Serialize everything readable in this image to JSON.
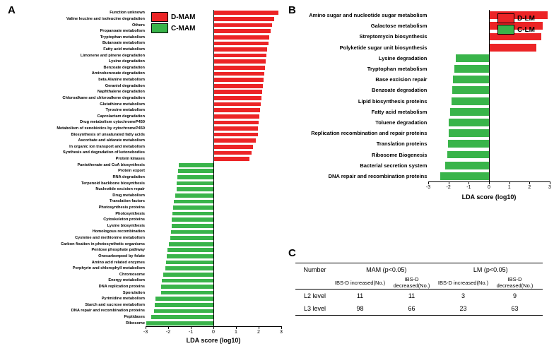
{
  "colors": {
    "red": "#ec2426",
    "green": "#39b44a",
    "axis": "#000000",
    "text": "#000000",
    "bg": "#ffffff"
  },
  "panelA": {
    "label": "A",
    "axis_title": "LDA score (log10)",
    "xlim": [
      -3,
      3
    ],
    "xticks": [
      -3,
      -2,
      -1,
      0,
      1,
      2,
      3
    ],
    "legend": [
      {
        "label": "D-MAM",
        "color": "#ec2426"
      },
      {
        "label": "C-MAM",
        "color": "#39b44a"
      }
    ],
    "bars": [
      {
        "label": "Function unknown",
        "value": 2.85,
        "color": "#ec2426"
      },
      {
        "label": "Valine leucine and isoleucine degradation",
        "value": 2.65,
        "color": "#ec2426"
      },
      {
        "label": "Others",
        "value": 2.55,
        "color": "#ec2426"
      },
      {
        "label": "Propanoate metabolism",
        "value": 2.5,
        "color": "#ec2426"
      },
      {
        "label": "Tryptophan metabolism",
        "value": 2.45,
        "color": "#ec2426"
      },
      {
        "label": "Butanoate metabolism",
        "value": 2.4,
        "color": "#ec2426"
      },
      {
        "label": "Fatty acid metabolism",
        "value": 2.35,
        "color": "#ec2426"
      },
      {
        "label": "Limonene and pinene degradation",
        "value": 2.32,
        "color": "#ec2426"
      },
      {
        "label": "Lysine degradation",
        "value": 2.28,
        "color": "#ec2426"
      },
      {
        "label": "Benzoate degradation",
        "value": 2.25,
        "color": "#ec2426"
      },
      {
        "label": "Aminobenzoate degradation",
        "value": 2.22,
        "color": "#ec2426"
      },
      {
        "label": "beta Alanine metabolism",
        "value": 2.2,
        "color": "#ec2426"
      },
      {
        "label": "Geraniol degradation",
        "value": 2.17,
        "color": "#ec2426"
      },
      {
        "label": "Naphthalene degradation",
        "value": 2.13,
        "color": "#ec2426"
      },
      {
        "label": "Chloroalkane and chloroalkene degradation",
        "value": 2.08,
        "color": "#ec2426"
      },
      {
        "label": "Glutathione metabolism",
        "value": 2.05,
        "color": "#ec2426"
      },
      {
        "label": "Tyrosine metabolism",
        "value": 2.02,
        "color": "#ec2426"
      },
      {
        "label": "Caprolactam degradation",
        "value": 2.0,
        "color": "#ec2426"
      },
      {
        "label": "Drug metabolism cytochromeP450",
        "value": 1.97,
        "color": "#ec2426"
      },
      {
        "label": "Metabolism of xenobiotics by cytochromeP450",
        "value": 1.95,
        "color": "#ec2426"
      },
      {
        "label": "Biosynthesis of unsaturated fatty acids",
        "value": 1.93,
        "color": "#ec2426"
      },
      {
        "label": "Ascorbate and aldarate metabolism",
        "value": 1.85,
        "color": "#ec2426"
      },
      {
        "label": "In organic ion transport and metabolism",
        "value": 1.73,
        "color": "#ec2426"
      },
      {
        "label": "Synthesis and degradation of ketonebodies",
        "value": 1.65,
        "color": "#ec2426"
      },
      {
        "label": "Protein kinases",
        "value": 1.55,
        "color": "#ec2426"
      },
      {
        "label": "Pantothenate and CoA biosynthesis",
        "value": -1.55,
        "color": "#39b44a"
      },
      {
        "label": "Protein export",
        "value": -1.6,
        "color": "#39b44a"
      },
      {
        "label": "RNA degradation",
        "value": -1.63,
        "color": "#39b44a"
      },
      {
        "label": "Terpenoid backbone biosynthesis",
        "value": -1.65,
        "color": "#39b44a"
      },
      {
        "label": "Nucleotide excision repair",
        "value": -1.67,
        "color": "#39b44a"
      },
      {
        "label": "Drug metabolism",
        "value": -1.72,
        "color": "#39b44a"
      },
      {
        "label": "Translation factors",
        "value": -1.78,
        "color": "#39b44a"
      },
      {
        "label": "Photosynthesis proteins",
        "value": -1.82,
        "color": "#39b44a"
      },
      {
        "label": "Photosynthesis",
        "value": -1.85,
        "color": "#39b44a"
      },
      {
        "label": "Cytoskeleton proteins",
        "value": -1.86,
        "color": "#39b44a"
      },
      {
        "label": "Lysine biosynthesis",
        "value": -1.88,
        "color": "#39b44a"
      },
      {
        "label": "Homologous recombination",
        "value": -1.9,
        "color": "#39b44a"
      },
      {
        "label": "Cysteine and methionine metabolism",
        "value": -1.95,
        "color": "#39b44a"
      },
      {
        "label": "Carbon fixation in photosynthetic organisms",
        "value": -2.0,
        "color": "#39b44a"
      },
      {
        "label": "Pentose phosphate pathway",
        "value": -2.05,
        "color": "#39b44a"
      },
      {
        "label": "Onecarbonpool by folate",
        "value": -2.08,
        "color": "#39b44a"
      },
      {
        "label": "Amino acid related enzymes",
        "value": -2.13,
        "color": "#39b44a"
      },
      {
        "label": "Porphyrin and chlorophyll metabolism",
        "value": -2.17,
        "color": "#39b44a"
      },
      {
        "label": "Chromosome",
        "value": -2.25,
        "color": "#39b44a"
      },
      {
        "label": "Energy metabolism",
        "value": -2.3,
        "color": "#39b44a"
      },
      {
        "label": "DNA replication proteins",
        "value": -2.33,
        "color": "#39b44a"
      },
      {
        "label": "Sporulation",
        "value": -2.35,
        "color": "#39b44a"
      },
      {
        "label": "Pyrimidine metabolism",
        "value": -2.6,
        "color": "#39b44a"
      },
      {
        "label": "Starch and sucrose metabolism",
        "value": -2.62,
        "color": "#39b44a"
      },
      {
        "label": "DNA repair and recombination proteins",
        "value": -2.65,
        "color": "#39b44a"
      },
      {
        "label": "Peptidases",
        "value": -2.78,
        "color": "#39b44a"
      },
      {
        "label": "Ribosome",
        "value": -3.0,
        "color": "#39b44a"
      }
    ]
  },
  "panelB": {
    "label": "B",
    "axis_title": "LDA score (log10)",
    "xlim": [
      -3,
      3
    ],
    "xticks": [
      -3,
      -2,
      -1,
      0,
      1,
      2,
      3
    ],
    "legend": [
      {
        "label": "D-LM",
        "color": "#ec2426"
      },
      {
        "label": "C-LM",
        "color": "#39b44a"
      }
    ],
    "bars": [
      {
        "label": "Amino sugar and nucleotide sugar metabolism",
        "value": 2.85,
        "color": "#ec2426"
      },
      {
        "label": "Galactose metabolism",
        "value": 2.6,
        "color": "#ec2426"
      },
      {
        "label": "Streptomycin biosynthesis",
        "value": 2.55,
        "color": "#ec2426"
      },
      {
        "label": "Polyketide sugar unit biosynthesis",
        "value": 2.3,
        "color": "#ec2426"
      },
      {
        "label": "Lysine degradation",
        "value": -1.7,
        "color": "#39b44a"
      },
      {
        "label": "Tryptophan metabolism",
        "value": -1.75,
        "color": "#39b44a"
      },
      {
        "label": "Base excision repair",
        "value": -1.82,
        "color": "#39b44a"
      },
      {
        "label": "Benzoate degradation",
        "value": -1.85,
        "color": "#39b44a"
      },
      {
        "label": "Lipid biosynthesis proteins",
        "value": -1.9,
        "color": "#39b44a"
      },
      {
        "label": "Fatty acid metabolism",
        "value": -1.98,
        "color": "#39b44a"
      },
      {
        "label": "Toluene degradation",
        "value": -2.02,
        "color": "#39b44a"
      },
      {
        "label": "Replication recombination and repair proteins",
        "value": -2.05,
        "color": "#39b44a"
      },
      {
        "label": "Translation proteins",
        "value": -2.08,
        "color": "#39b44a"
      },
      {
        "label": "Ribosome Biogenesis",
        "value": -2.12,
        "color": "#39b44a"
      },
      {
        "label": "Bacterial secretion system",
        "value": -2.2,
        "color": "#39b44a"
      },
      {
        "label": "DNA repair and recombination proteins",
        "value": -2.45,
        "color": "#39b44a"
      }
    ]
  },
  "panelC": {
    "label": "C",
    "header": {
      "number": "Number",
      "group1": "MAM  (p<0.05)",
      "group2": "LM (p<0.05)",
      "sub_inc": "IBS-D increased(No.)",
      "sub_dec": "IBS-D decreased(No.)"
    },
    "rows": [
      {
        "label": "L2 level",
        "mam_inc": "11",
        "mam_dec": "11",
        "lm_inc": "3",
        "lm_dec": "9"
      },
      {
        "label": "L3 level",
        "mam_inc": "98",
        "mam_dec": "66",
        "lm_inc": "23",
        "lm_dec": "63"
      }
    ]
  }
}
